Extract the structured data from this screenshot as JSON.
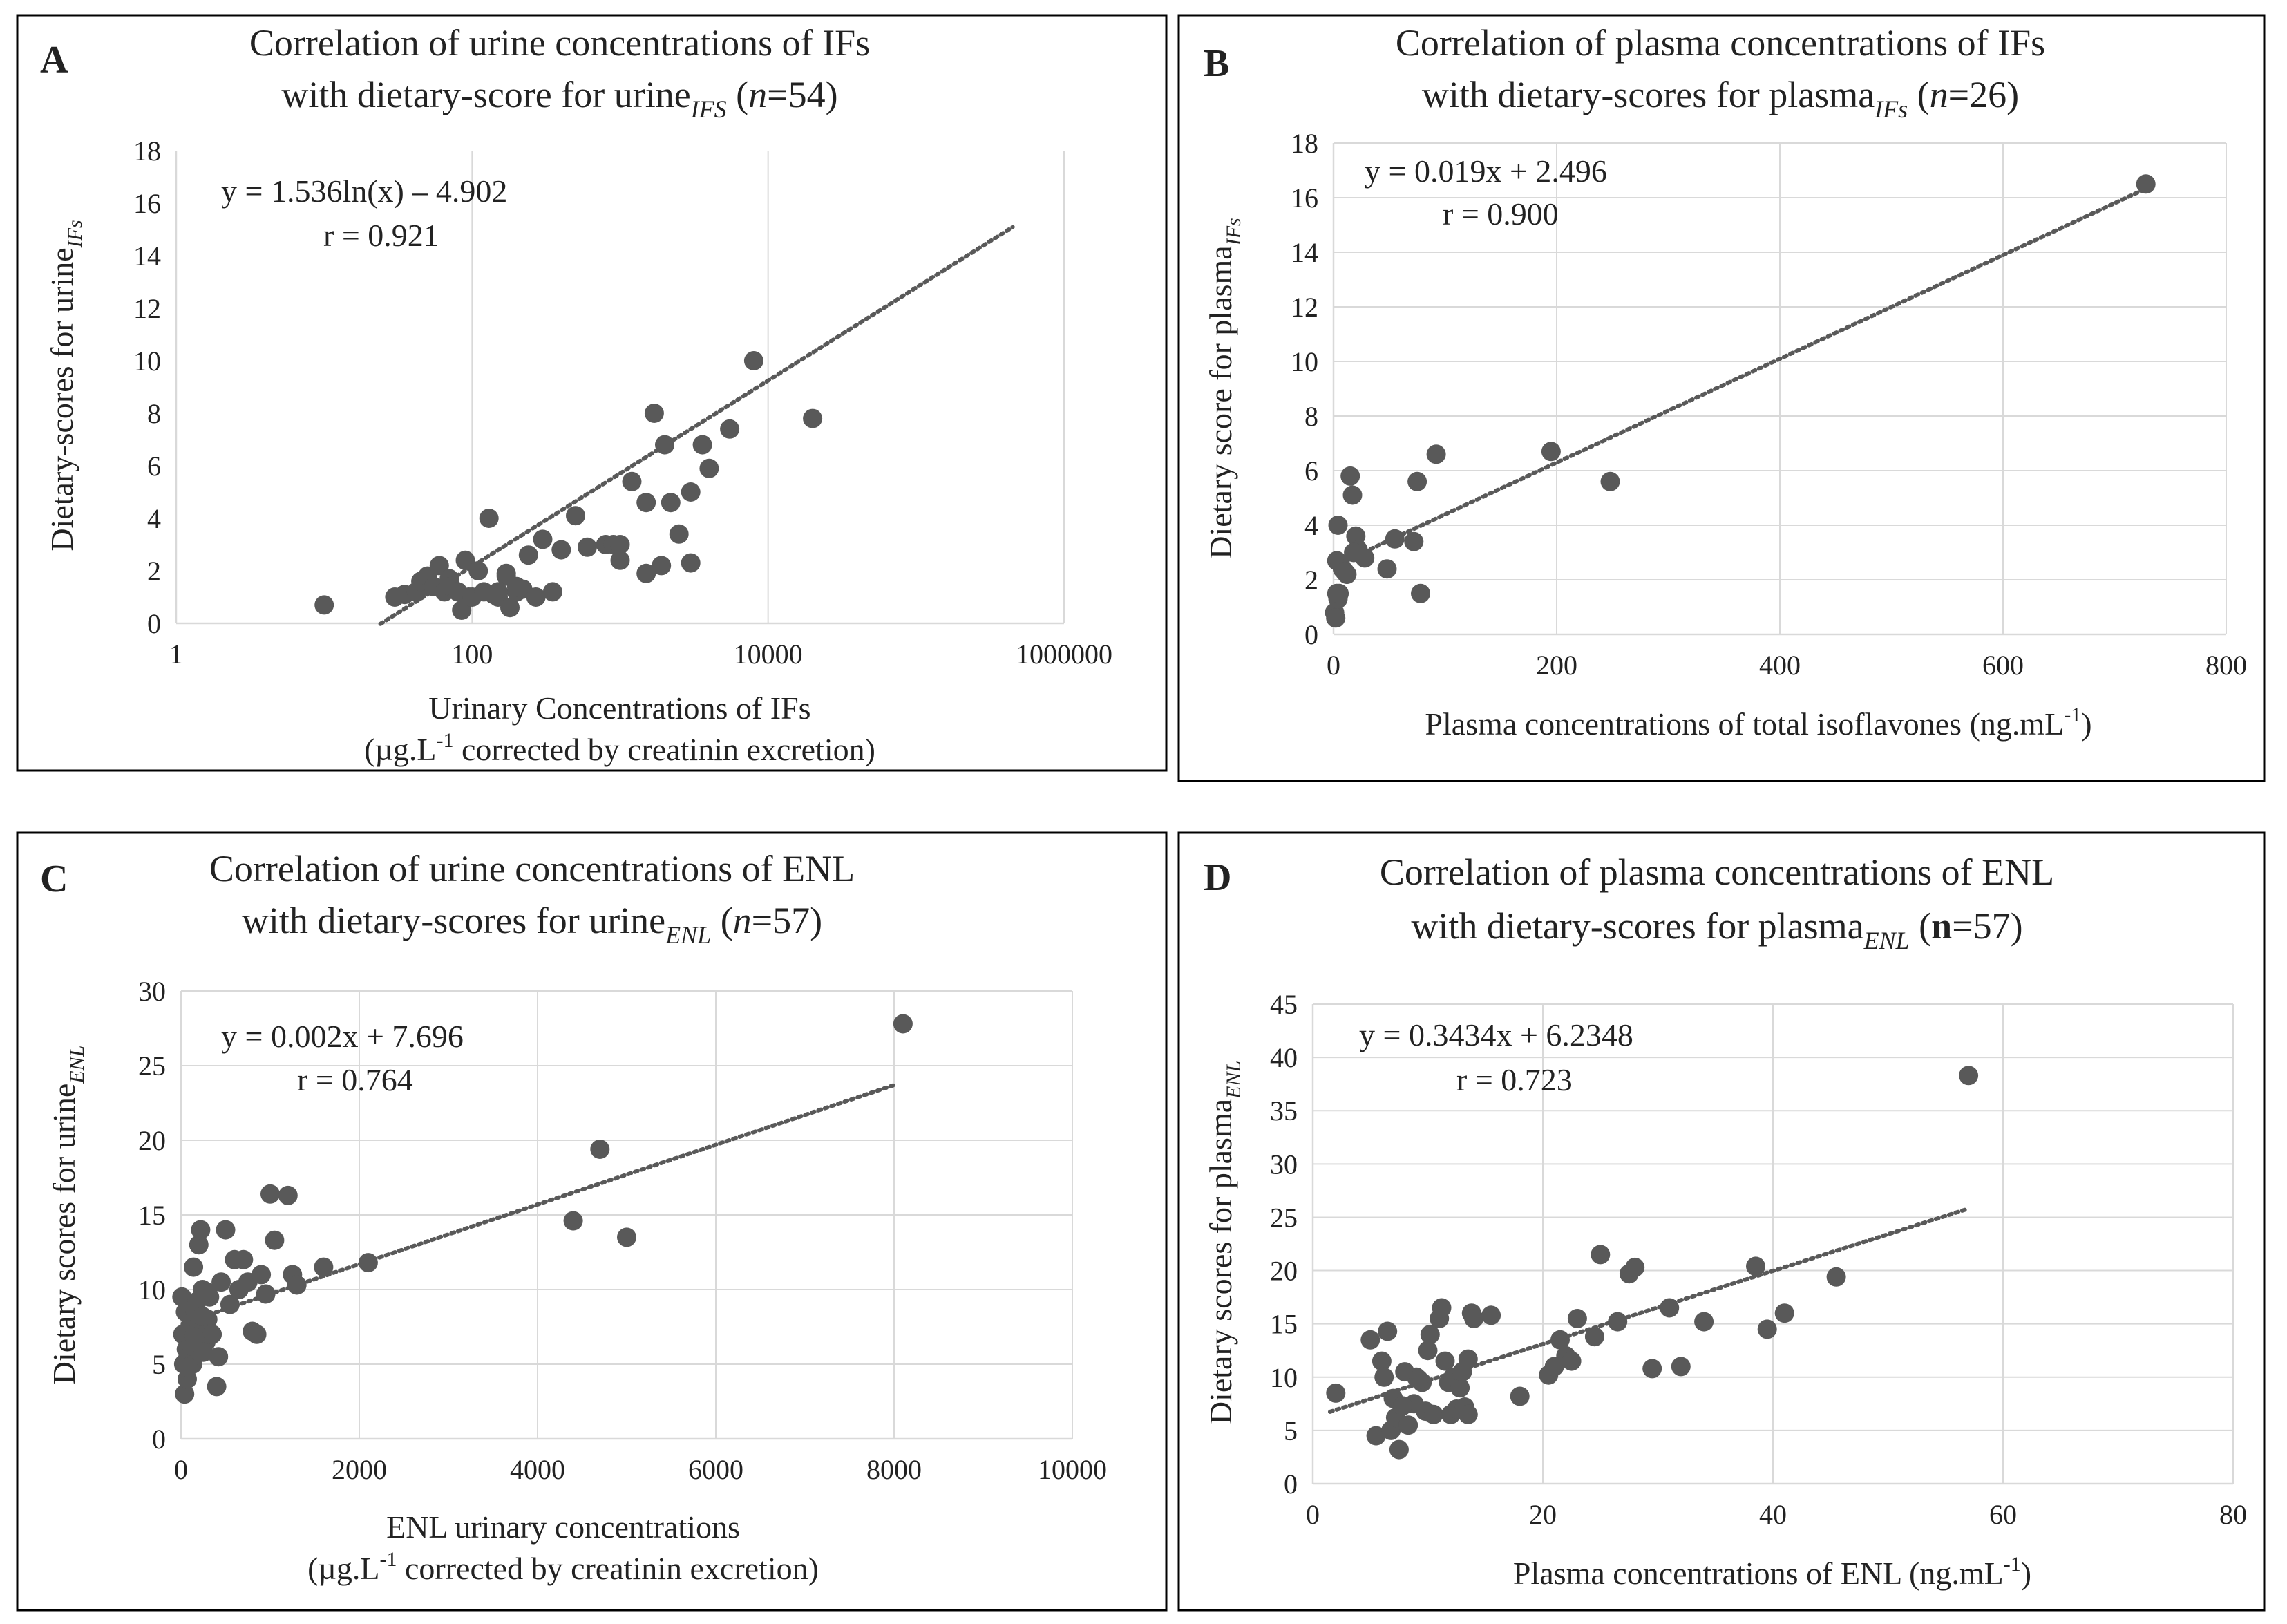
{
  "figure": {
    "panels": [
      {
        "letter": "A",
        "title_line1": "Correlation of urine concentrations of IFs",
        "title_line2_parts": [
          {
            "text": "with dietary-score for urine"
          },
          {
            "text": "IFS",
            "style": "sub-italic"
          },
          {
            "text": " ("
          },
          {
            "text": "n",
            "style": "italic"
          },
          {
            "text": "=54)"
          }
        ],
        "ylabel_parts": [
          {
            "text": "Dietary-scores for urine"
          },
          {
            "text": "IFs",
            "style": "sub-italic"
          }
        ],
        "xlabel_line1_parts": [
          {
            "text": "Urinary Concentrations of IFs"
          }
        ],
        "xlabel_line2_parts": [
          {
            "text": "(µg.L"
          },
          {
            "text": "-1",
            "style": "sup"
          },
          {
            "text": " corrected by creatinin excretion)"
          }
        ],
        "equation": "y = 1.536ln(x) – 4.902",
        "r_label": "r = 0.921"
      },
      {
        "letter": "B",
        "title_line1": "Correlation of plasma concentrations of IFs",
        "title_line2_parts": [
          {
            "text": "with dietary-scores for plasma"
          },
          {
            "text": "IFs",
            "style": "sub-italic"
          },
          {
            "text": " ("
          },
          {
            "text": "n",
            "style": "italic"
          },
          {
            "text": "=26)"
          }
        ],
        "ylabel_parts": [
          {
            "text": "Dietary score for plasma"
          },
          {
            "text": "IFs",
            "style": "sub-italic"
          }
        ],
        "xlabel_line1_parts": [
          {
            "text": "Plasma concentrations of total isoflavones (ng.mL"
          },
          {
            "text": "-1",
            "style": "sup"
          },
          {
            "text": ")"
          }
        ],
        "xlabel_line2_parts": [],
        "equation": "y = 0.019x + 2.496",
        "r_label": "r = 0.900"
      },
      {
        "letter": "C",
        "title_line1": "Correlation of urine concentrations of ENL",
        "title_line2_parts": [
          {
            "text": "with dietary-scores for urine"
          },
          {
            "text": "ENL",
            "style": "sub-italic"
          },
          {
            "text": " ("
          },
          {
            "text": "n",
            "style": "italic"
          },
          {
            "text": "=57)"
          }
        ],
        "ylabel_parts": [
          {
            "text": "Dietary scores for urine"
          },
          {
            "text": "ENL",
            "style": "sub-italic"
          }
        ],
        "xlabel_line1_parts": [
          {
            "text": "ENL urinary concentrations"
          }
        ],
        "xlabel_line2_parts": [
          {
            "text": "(µg.L"
          },
          {
            "text": "-1",
            "style": "sup"
          },
          {
            "text": " corrected by creatinin excretion)"
          }
        ],
        "equation": "y = 0.002x + 7.696",
        "r_label": "r = 0.764"
      },
      {
        "letter": "D",
        "title_line1": "Correlation of plasma concentrations of ENL",
        "title_line2_parts": [
          {
            "text": "with dietary-scores for plasma"
          },
          {
            "text": "ENL",
            "style": "sub-italic"
          },
          {
            "text": " ("
          },
          {
            "text": "n",
            "style": "bold"
          },
          {
            "text": "=57)"
          }
        ],
        "ylabel_parts": [
          {
            "text": "Dietary scores for plasma"
          },
          {
            "text": "ENL",
            "style": "sub-italic"
          }
        ],
        "xlabel_line1_parts": [
          {
            "text": "Plasma concentrations of ENL (ng.mL"
          },
          {
            "text": "-1",
            "style": "sup"
          },
          {
            "text": ")"
          }
        ],
        "xlabel_line2_parts": [],
        "equation": "y = 0.3434x + 6.2348",
        "r_label": "r = 0.723"
      }
    ]
  },
  "colors": {
    "marker": "#595959",
    "trendline": "#595959",
    "gridline": "#d9d9d9",
    "axis_text": "#222222",
    "panel_border": "#000000"
  },
  "chart_data": [
    {
      "type": "scatter",
      "title": "Correlation of urine concentrations of IFs with dietary-score for urineIFS (n=54)",
      "xlabel": "Urinary Concentrations of IFs (µg.L-1 corrected by creatinin excretion)",
      "ylabel": "Dietary-scores for urineIFs",
      "xscale": "log10",
      "xlim": [
        1,
        1000000
      ],
      "ylim": [
        0,
        18
      ],
      "xticks": [
        1,
        100,
        10000,
        1000000
      ],
      "xtick_labels": [
        "1",
        "100",
        "10000",
        "1000000"
      ],
      "yticks": [
        0,
        2,
        4,
        6,
        8,
        10,
        12,
        14,
        16,
        18
      ],
      "grid": "vertical",
      "trendline": {
        "kind": "log",
        "a": 1.536,
        "b": -4.902,
        "x_range": [
          24,
          450000
        ]
      },
      "x": [
        10,
        30,
        35,
        42,
        45,
        50,
        55,
        60,
        65,
        70,
        72,
        80,
        85,
        90,
        95,
        100,
        110,
        120,
        130,
        150,
        170,
        180,
        200,
        220,
        240,
        270,
        300,
        350,
        400,
        500,
        600,
        800,
        900,
        1000,
        1200,
        1500,
        1700,
        1900,
        2000,
        2200,
        2500,
        3000,
        3600,
        4000,
        5500,
        8000,
        20000,
        3000,
        1500,
        1000,
        150,
        200,
        170,
        140
      ],
      "y": [
        0.7,
        1.0,
        1.1,
        1.2,
        1.6,
        1.8,
        1.4,
        2.2,
        1.2,
        1.7,
        1.4,
        1.2,
        0.5,
        2.4,
        1.0,
        1.0,
        2.0,
        1.2,
        4.0,
        1.0,
        1.8,
        0.6,
        1.2,
        1.3,
        2.6,
        1.0,
        3.2,
        1.2,
        2.8,
        4.1,
        2.9,
        3.0,
        3.0,
        2.4,
        5.4,
        4.6,
        8.0,
        2.2,
        6.8,
        4.6,
        3.4,
        5.0,
        6.8,
        5.9,
        7.4,
        10.0,
        7.8,
        2.3,
        1.9,
        3.0,
        1.2,
        1.4,
        1.9,
        1.1
      ]
    },
    {
      "type": "scatter",
      "title": "Correlation of plasma concentrations of IFs with dietary-scores for plasmaIFs (n=26)",
      "xlabel": "Plasma concentrations of total isoflavones (ng.mL-1)",
      "ylabel": "Dietary score for plasmaIFs",
      "xscale": "linear",
      "xlim": [
        0,
        800
      ],
      "ylim": [
        0,
        18
      ],
      "xticks": [
        0,
        200,
        400,
        600,
        800
      ],
      "xtick_labels": [
        "0",
        "200",
        "400",
        "600",
        "800"
      ],
      "yticks": [
        0,
        2,
        4,
        6,
        8,
        10,
        12,
        14,
        16,
        18
      ],
      "grid": "both",
      "trendline": {
        "kind": "linear",
        "a": 0.019,
        "b": 2.496,
        "x_range": [
          5,
          728
        ]
      },
      "x": [
        1,
        2,
        3,
        3,
        4,
        4,
        5,
        6,
        8,
        10,
        12,
        15,
        17,
        20,
        22,
        28,
        48,
        55,
        72,
        75,
        78,
        92,
        195,
        248,
        728,
        18
      ],
      "y": [
        0.8,
        0.6,
        2.7,
        1.5,
        4.0,
        1.3,
        1.5,
        2.6,
        2.4,
        2.3,
        2.2,
        5.8,
        5.1,
        3.6,
        3.1,
        2.8,
        2.4,
        3.5,
        3.4,
        5.6,
        1.5,
        6.6,
        6.7,
        5.6,
        16.5,
        3.0
      ]
    },
    {
      "type": "scatter",
      "title": "Correlation of urine concentrations of ENL with dietary-scores for urineENL (n=57)",
      "xlabel": "ENL urinary concentrations (µg.L-1 corrected by creatinin excretion)",
      "ylabel": "Dietary scores for urineENL",
      "xscale": "linear",
      "xlim": [
        0,
        10000
      ],
      "ylim": [
        0,
        30
      ],
      "xticks": [
        0,
        2000,
        4000,
        6000,
        8000,
        10000
      ],
      "xtick_labels": [
        "0",
        "2000",
        "4000",
        "6000",
        "8000",
        "10000"
      ],
      "yticks": [
        0,
        5,
        10,
        15,
        20,
        25,
        30
      ],
      "grid": "both",
      "trendline": {
        "kind": "linear",
        "a": 0.002,
        "b": 7.696,
        "x_range": [
          20,
          8000
        ]
      },
      "x": [
        10,
        20,
        30,
        40,
        50,
        60,
        70,
        80,
        90,
        100,
        110,
        120,
        130,
        140,
        150,
        160,
        180,
        200,
        220,
        240,
        260,
        280,
        300,
        320,
        350,
        400,
        420,
        450,
        500,
        550,
        600,
        650,
        700,
        750,
        800,
        850,
        900,
        950,
        1000,
        1050,
        1200,
        1250,
        1300,
        1600,
        2100,
        4400,
        4700,
        5000,
        8100,
        60,
        120,
        180,
        240,
        300,
        80,
        150,
        250
      ],
      "y": [
        9.5,
        7.0,
        5.0,
        3.0,
        8.5,
        6.0,
        4.0,
        5.5,
        9.0,
        7.5,
        6.5,
        8.0,
        5.0,
        11.5,
        7.0,
        8.5,
        6.0,
        13.0,
        14.0,
        10.0,
        7.5,
        6.5,
        8.0,
        9.5,
        7.0,
        3.5,
        5.5,
        10.5,
        14.0,
        9.0,
        12.0,
        10.0,
        12.0,
        10.5,
        7.2,
        7.0,
        11.0,
        9.7,
        16.4,
        13.3,
        16.3,
        11.0,
        10.3,
        11.5,
        11.8,
        14.6,
        19.4,
        13.5,
        27.8,
        5.2,
        6.2,
        9.2,
        8.2,
        9.8,
        4.8,
        6.8,
        5.8
      ]
    },
    {
      "type": "scatter",
      "title": "Correlation of plasma concentrations of ENL with dietary-scores for plasmaENL (n=57)",
      "xlabel": "Plasma concentrations of ENL (ng.mL-1)",
      "ylabel": "Dietary scores for plasmaENL",
      "xscale": "linear",
      "xlim": [
        0,
        80
      ],
      "ylim": [
        0,
        45
      ],
      "xticks": [
        0,
        20,
        40,
        60,
        80
      ],
      "xtick_labels": [
        "0",
        "20",
        "40",
        "60",
        "80"
      ],
      "yticks": [
        0,
        5,
        10,
        15,
        20,
        25,
        30,
        35,
        40,
        45
      ],
      "grid": "both",
      "trendline": {
        "kind": "linear",
        "a": 0.3434,
        "b": 6.2348,
        "x_range": [
          1.5,
          57
        ]
      },
      "x": [
        2,
        5,
        5.5,
        6,
        6.2,
        6.5,
        6.8,
        7,
        7.2,
        7.5,
        8,
        8.3,
        8.8,
        9,
        9.5,
        9.8,
        10,
        10.2,
        10.5,
        11,
        11.2,
        11.5,
        11.8,
        12,
        12.2,
        12.5,
        12.8,
        13,
        13.2,
        13.5,
        13.8,
        14,
        15.5,
        18,
        20.5,
        21,
        21.5,
        22,
        22.5,
        23,
        24.5,
        25,
        26.5,
        27.5,
        28,
        29.5,
        31,
        32,
        34,
        38.5,
        39.5,
        41,
        45.5,
        57,
        13.5,
        9.2,
        7.8
      ],
      "y": [
        8.5,
        13.5,
        4.5,
        11.5,
        10.0,
        14.3,
        5.0,
        8.0,
        6.2,
        3.2,
        10.5,
        5.5,
        7.5,
        10.0,
        9.5,
        6.8,
        12.5,
        14.0,
        6.5,
        15.5,
        16.5,
        11.5,
        9.5,
        6.5,
        10.0,
        7.0,
        9.0,
        10.5,
        7.2,
        6.5,
        16.0,
        15.5,
        15.8,
        8.2,
        10.2,
        11.0,
        13.5,
        12.0,
        11.5,
        15.5,
        13.8,
        21.5,
        15.2,
        19.7,
        20.3,
        10.8,
        16.5,
        11.0,
        15.2,
        20.4,
        14.5,
        16.0,
        19.4,
        38.3,
        11.7,
        9.8,
        7.3
      ]
    }
  ]
}
